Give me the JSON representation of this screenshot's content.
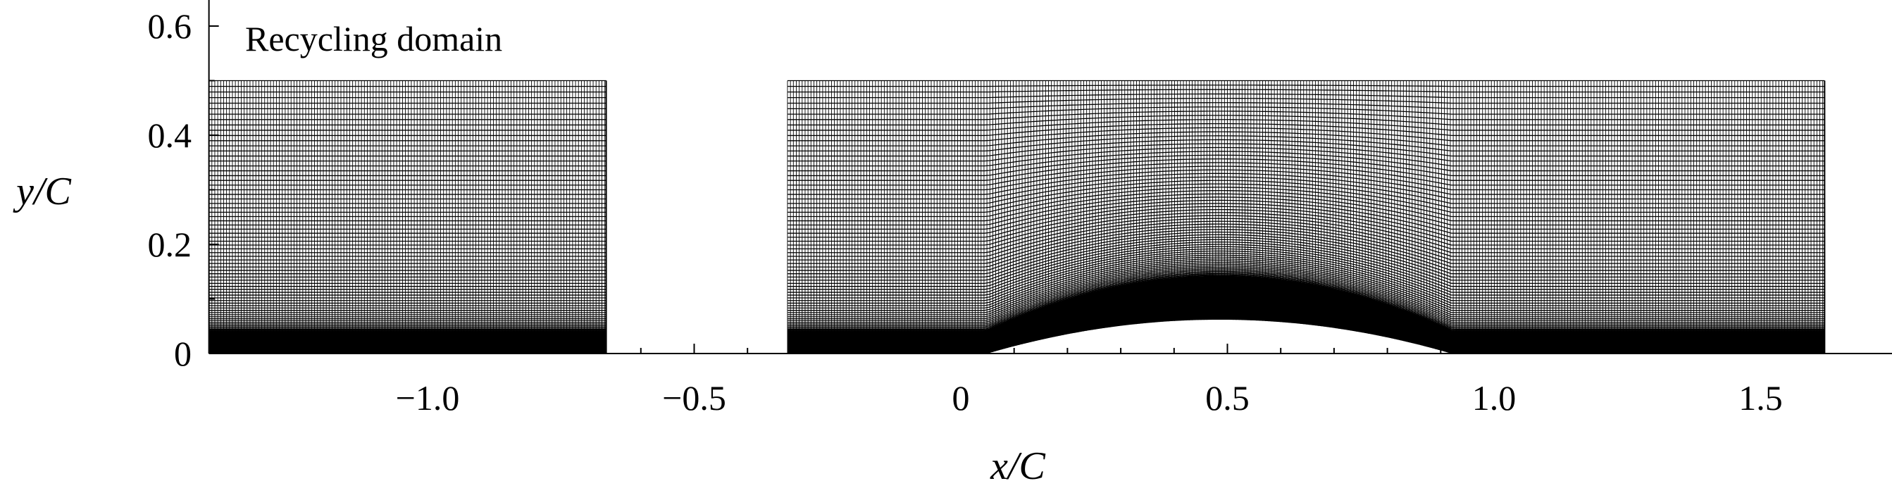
{
  "chart_data": {
    "type": "mesh",
    "xlabel": "x/C",
    "ylabel": "y/C",
    "xlim": [
      -1.41,
      1.62
    ],
    "ylim": [
      0,
      0.63
    ],
    "x_ticks": [
      {
        "value": -1.0,
        "label": "−1.0"
      },
      {
        "value": -0.5,
        "label": "−0.5"
      },
      {
        "value": 0,
        "label": "0"
      },
      {
        "value": 0.5,
        "label": "0.5"
      },
      {
        "value": 1.0,
        "label": "1.0"
      },
      {
        "value": 1.5,
        "label": "1.5"
      }
    ],
    "y_ticks": [
      {
        "value": 0,
        "label": "0"
      },
      {
        "value": 0.2,
        "label": "0.2"
      },
      {
        "value": 0.4,
        "label": "0.4"
      },
      {
        "value": 0.6,
        "label": "0.6"
      }
    ],
    "annotation": "Recycling domain",
    "blocks": [
      {
        "name": "recycling",
        "x_range": [
          -1.41,
          -0.665
        ],
        "y_top": 0.5
      },
      {
        "name": "main",
        "x_range": [
          -0.325,
          1.62
        ],
        "y_top": 0.5
      }
    ],
    "bump": {
      "x_start": 0.05,
      "x_end": 0.92,
      "height": 0.062
    },
    "mesh_color": "#000000"
  }
}
